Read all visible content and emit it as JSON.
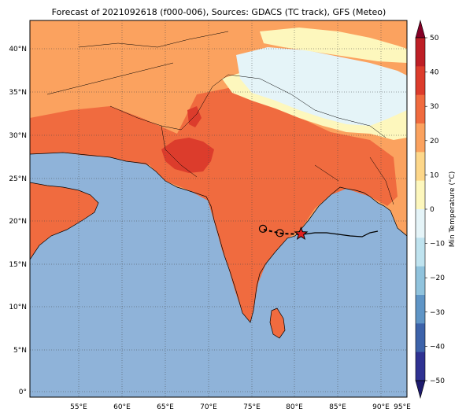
{
  "title": "Forecast of 2021092618 (f000-006), Sources: GDACS (TC track), GFS (Meteo)",
  "map": {
    "lon_range": [
      51.5,
      96
    ],
    "lat_range": [
      -0.8,
      43.5
    ],
    "x_ticks": [
      "55°E",
      "60°E",
      "65°E",
      "70°E",
      "75°E",
      "80°E",
      "85°E",
      "90°E",
      "95°E"
    ],
    "y_ticks": [
      "0°",
      "5°N",
      "10°N",
      "15°N",
      "20°N",
      "25°N",
      "30°N",
      "35°N",
      "40°N"
    ],
    "ocean_color": "#8fb3d9",
    "grid": true
  },
  "legend": {
    "colorbar_label": "Min Temperature (°C)",
    "ticks": [
      "50",
      "40",
      "30",
      "20",
      "10",
      "0",
      "−10",
      "−20",
      "−30",
      "−40",
      "−50"
    ],
    "colors": [
      "#840026",
      "#be1f26",
      "#dc3c2c",
      "#f06b3f",
      "#fba25f",
      "#fdd78a",
      "#fdf7bd",
      "#e5f4f8",
      "#bfe3ef",
      "#90c3dd",
      "#5f95c6",
      "#3d63aa",
      "#2f3292",
      "#1e1b6e"
    ]
  },
  "track": {
    "points": [
      {
        "lon": 79.0,
        "lat": 19.0,
        "type": "circle"
      },
      {
        "lon": 81.0,
        "lat": 18.5,
        "type": "circle"
      },
      {
        "lon": 83.5,
        "lat": 18.4,
        "type": "star"
      }
    ]
  }
}
